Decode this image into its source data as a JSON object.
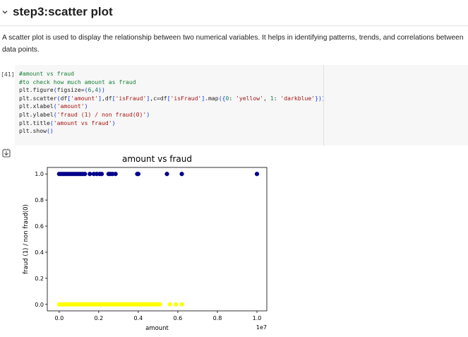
{
  "section": {
    "title": "step3:scatter plot",
    "description": "A scatter plot is used to display the relationship between two numerical variables. It helps in identifying patterns, trends, and correlations between data points."
  },
  "code_cell": {
    "execution_count": "[41]",
    "lines": [
      "#amount vs fraud",
      "#to check how much amount as fraud",
      "plt.figure(figsize=(6,4))",
      "plt.scatter(df['amount'],df['isFraud'],c=df['isFraud'].map({0: 'yellow', 1: 'darkblue'}))",
      "plt.xlabel('amount')",
      "plt.ylabel('fraud (1) / non fraud(0)')",
      "plt.title('amount vs fraud')",
      "plt.show()"
    ]
  },
  "icons": {
    "collapse": "chevron-down-icon",
    "output": "output-toggle-icon"
  },
  "chart_data": {
    "type": "scatter",
    "title": "amount vs fraud",
    "xlabel": "amount",
    "ylabel": "fraud (1) / non fraud(0)",
    "x_offset_label": "1e7",
    "xlim": [
      -0.06,
      1.05
    ],
    "ylim": [
      -0.05,
      1.05
    ],
    "x_ticks": [
      0.0,
      0.2,
      0.4,
      0.6,
      0.8,
      1.0
    ],
    "x_tick_labels": [
      "0.0",
      "0.2",
      "0.4",
      "0.6",
      "0.8",
      "1.0"
    ],
    "y_ticks": [
      0.0,
      0.2,
      0.4,
      0.6,
      0.8,
      1.0
    ],
    "y_tick_labels": [
      "0.0",
      "0.2",
      "0.4",
      "0.6",
      "0.8",
      "1.0"
    ],
    "colors": {
      "0": "#ffff00",
      "1": "#00008b"
    },
    "series": [
      {
        "label_value": 1,
        "x": [
          0.0,
          0.01,
          0.02,
          0.03,
          0.04,
          0.05,
          0.06,
          0.07,
          0.08,
          0.09,
          0.1,
          0.11,
          0.12,
          0.13,
          0.155,
          0.175,
          0.19,
          0.205,
          0.215,
          0.25,
          0.26,
          0.27,
          0.285,
          0.395,
          0.4,
          0.545,
          0.62,
          1.0
        ],
        "y": [
          1,
          1,
          1,
          1,
          1,
          1,
          1,
          1,
          1,
          1,
          1,
          1,
          1,
          1,
          1,
          1,
          1,
          1,
          1,
          1,
          1,
          1,
          1,
          1,
          1,
          1,
          1,
          1
        ]
      },
      {
        "label_value": 0,
        "x": [
          0.0,
          0.01,
          0.02,
          0.03,
          0.04,
          0.05,
          0.06,
          0.07,
          0.08,
          0.09,
          0.1,
          0.11,
          0.12,
          0.13,
          0.14,
          0.15,
          0.16,
          0.17,
          0.18,
          0.19,
          0.2,
          0.21,
          0.22,
          0.23,
          0.24,
          0.25,
          0.26,
          0.27,
          0.28,
          0.29,
          0.3,
          0.31,
          0.32,
          0.33,
          0.34,
          0.35,
          0.36,
          0.37,
          0.38,
          0.39,
          0.4,
          0.41,
          0.42,
          0.43,
          0.44,
          0.45,
          0.46,
          0.47,
          0.48,
          0.49,
          0.5,
          0.51,
          0.56,
          0.59,
          0.62
        ],
        "y": [
          0,
          0,
          0,
          0,
          0,
          0,
          0,
          0,
          0,
          0,
          0,
          0,
          0,
          0,
          0,
          0,
          0,
          0,
          0,
          0,
          0,
          0,
          0,
          0,
          0,
          0,
          0,
          0,
          0,
          0,
          0,
          0,
          0,
          0,
          0,
          0,
          0,
          0,
          0,
          0,
          0,
          0,
          0,
          0,
          0,
          0,
          0,
          0,
          0,
          0,
          0,
          0,
          0,
          0,
          0
        ]
      }
    ],
    "grid": false
  }
}
